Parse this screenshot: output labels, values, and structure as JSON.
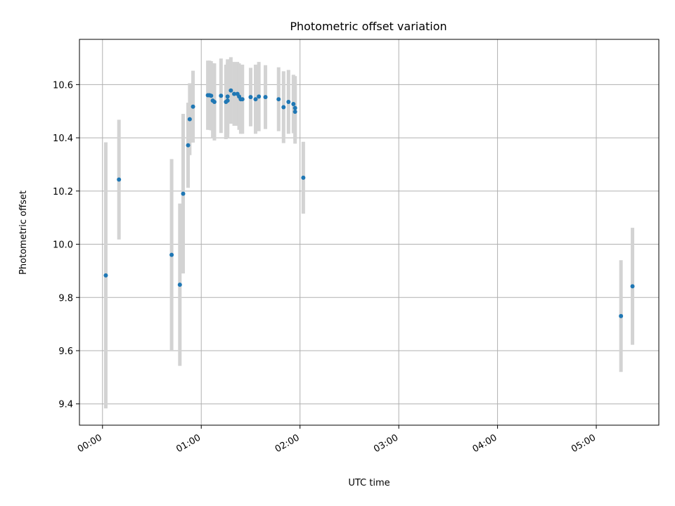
{
  "chart_data": {
    "type": "scatter",
    "title": "Photometric offset variation",
    "xlabel": "UTC time",
    "ylabel": "Photometric offset",
    "x_ticks": [
      "00:00",
      "01:00",
      "02:00",
      "03:00",
      "04:00",
      "05:00"
    ],
    "y_ticks": [
      "9.4",
      "9.6",
      "9.8",
      "10.0",
      "10.2",
      "10.4",
      "10.6"
    ],
    "xlim": [
      "-00:14",
      "05:38"
    ],
    "ylim": [
      9.32,
      10.77
    ],
    "grid": true,
    "colors": {
      "point": "#1f77b4",
      "errorbar": "#d3d3d3",
      "grid": "#b0b0b0"
    },
    "points": [
      {
        "x": "00:02",
        "y": 9.883,
        "err": 0.5
      },
      {
        "x": "00:10",
        "y": 10.243,
        "err": 0.225
      },
      {
        "x": "00:42",
        "y": 9.96,
        "err": 0.36
      },
      {
        "x": "00:47",
        "y": 9.848,
        "err": 0.305
      },
      {
        "x": "00:49",
        "y": 10.19,
        "err": 0.3
      },
      {
        "x": "00:52",
        "y": 10.372,
        "err": 0.16
      },
      {
        "x": "00:53",
        "y": 10.47,
        "err": 0.135
      },
      {
        "x": "00:55",
        "y": 10.517,
        "err": 0.135
      },
      {
        "x": "01:04",
        "y": 10.56,
        "err": 0.13
      },
      {
        "x": "01:05",
        "y": 10.56,
        "err": 0.13
      },
      {
        "x": "01:06",
        "y": 10.558,
        "err": 0.13
      },
      {
        "x": "01:07",
        "y": 10.54,
        "err": 0.14
      },
      {
        "x": "01:08",
        "y": 10.535,
        "err": 0.145
      },
      {
        "x": "01:12",
        "y": 10.558,
        "err": 0.14
      },
      {
        "x": "01:15",
        "y": 10.535,
        "err": 0.14
      },
      {
        "x": "01:16",
        "y": 10.555,
        "err": 0.14
      },
      {
        "x": "01:16",
        "y": 10.54,
        "err": 0.14
      },
      {
        "x": "01:18",
        "y": 10.578,
        "err": 0.125
      },
      {
        "x": "01:20",
        "y": 10.565,
        "err": 0.12
      },
      {
        "x": "01:22",
        "y": 10.565,
        "err": 0.12
      },
      {
        "x": "01:23",
        "y": 10.555,
        "err": 0.125
      },
      {
        "x": "01:24",
        "y": 10.545,
        "err": 0.13
      },
      {
        "x": "01:25",
        "y": 10.545,
        "err": 0.13
      },
      {
        "x": "01:30",
        "y": 10.553,
        "err": 0.11
      },
      {
        "x": "01:33",
        "y": 10.545,
        "err": 0.13
      },
      {
        "x": "01:35",
        "y": 10.555,
        "err": 0.13
      },
      {
        "x": "01:39",
        "y": 10.553,
        "err": 0.12
      },
      {
        "x": "01:47",
        "y": 10.545,
        "err": 0.12
      },
      {
        "x": "01:50",
        "y": 10.515,
        "err": 0.135
      },
      {
        "x": "01:53",
        "y": 10.535,
        "err": 0.12
      },
      {
        "x": "01:56",
        "y": 10.527,
        "err": 0.11
      },
      {
        "x": "01:57",
        "y": 10.512,
        "err": 0.12
      },
      {
        "x": "01:57",
        "y": 10.498,
        "err": 0.12
      },
      {
        "x": "02:02",
        "y": 10.25,
        "err": 0.135
      },
      {
        "x": "05:15",
        "y": 9.73,
        "err": 0.21
      },
      {
        "x": "05:22",
        "y": 9.842,
        "err": 0.22
      }
    ]
  }
}
